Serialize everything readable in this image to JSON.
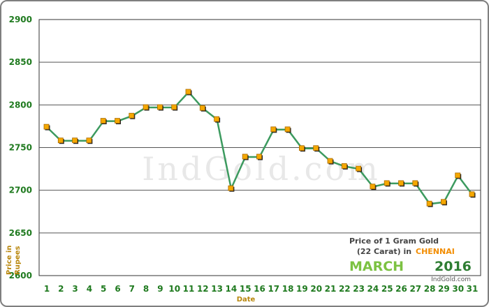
{
  "chart_data": {
    "type": "line",
    "xlabel": "Date",
    "ylabel": "Price in Rupees",
    "ylim": [
      2600,
      2900
    ],
    "yticks": [
      2600,
      2650,
      2700,
      2750,
      2800,
      2850,
      2900
    ],
    "grid": "horizontal",
    "x": [
      1,
      2,
      3,
      4,
      5,
      6,
      7,
      8,
      9,
      10,
      11,
      12,
      13,
      14,
      15,
      16,
      17,
      18,
      19,
      20,
      21,
      22,
      23,
      24,
      25,
      26,
      27,
      28,
      29,
      30,
      31
    ],
    "series": [
      {
        "values": [
          2774,
          2758,
          2758,
          2758,
          2781,
          2781,
          2787,
          2797,
          2797,
          2797,
          2815,
          2796,
          2783,
          2702,
          2739,
          2739,
          2771,
          2771,
          2749,
          2749,
          2734,
          2728,
          2725,
          2704,
          2708,
          2708,
          2708,
          2684,
          2686,
          2717,
          2695
        ],
        "line_color": "#3c9a5f",
        "marker_color": "#f5a800"
      }
    ],
    "watermark": "IndGold.com",
    "annotation": {
      "line1": "Price of 1 Gram Gold",
      "line2a": "(22 Carat) in",
      "city": "CHENNAI",
      "month": "MARCH",
      "year": "2016",
      "site": "IndGold.com"
    }
  }
}
